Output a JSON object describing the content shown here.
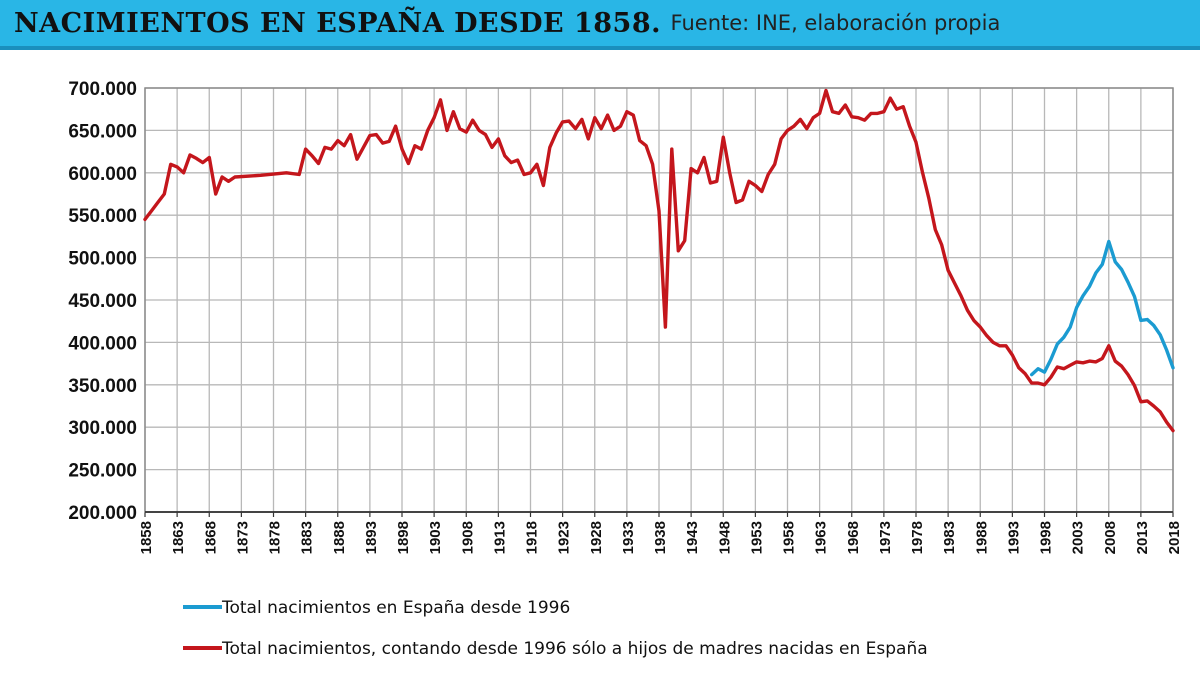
{
  "header": {
    "title": "NACIMIENTOS EN ESPAÑA DESDE 1858",
    "separator": ".",
    "source": "Fuente: INE, elaboración propia"
  },
  "colors": {
    "header_bg": "#29b6e6",
    "series_blue": "#1b9bd1",
    "series_red": "#c4161c"
  },
  "chart_data": {
    "type": "line",
    "title": "NACIMIENTOS EN ESPAÑA DESDE 1858",
    "xlabel": "",
    "ylabel": "",
    "xlim": [
      1858,
      2018
    ],
    "ylim": [
      200000,
      700000
    ],
    "grid": true,
    "legend_position": "bottom",
    "y_ticks": [
      {
        "value": 200000,
        "label": "200.000"
      },
      {
        "value": 250000,
        "label": "250.000"
      },
      {
        "value": 300000,
        "label": "300.000"
      },
      {
        "value": 350000,
        "label": "350.000"
      },
      {
        "value": 400000,
        "label": "400.000"
      },
      {
        "value": 450000,
        "label": "450.000"
      },
      {
        "value": 500000,
        "label": "500.000"
      },
      {
        "value": 550000,
        "label": "550.000"
      },
      {
        "value": 600000,
        "label": "600.000"
      },
      {
        "value": 650000,
        "label": "650.000"
      },
      {
        "value": 700000,
        "label": "700.000"
      }
    ],
    "x_ticks": [
      "1858",
      "1863",
      "1868",
      "1873",
      "1878",
      "1883",
      "1888",
      "1893",
      "1898",
      "1903",
      "1908",
      "1913",
      "1918",
      "1923",
      "1928",
      "1933",
      "1938",
      "1943",
      "1948",
      "1953",
      "1958",
      "1963",
      "1968",
      "1973",
      "1978",
      "1983",
      "1988",
      "1993",
      "1998",
      "2003",
      "2008",
      "2013",
      "2018"
    ],
    "series": [
      {
        "name": "Total nacimientos en España desde 1996",
        "color": "#1b9bd1",
        "points": [
          [
            1996,
            362000
          ],
          [
            1997,
            369000
          ],
          [
            1998,
            365000
          ],
          [
            1999,
            380000
          ],
          [
            2000,
            398000
          ],
          [
            2001,
            406000
          ],
          [
            2002,
            418000
          ],
          [
            2003,
            441000
          ],
          [
            2004,
            455000
          ],
          [
            2005,
            466000
          ],
          [
            2006,
            482000
          ],
          [
            2007,
            492000
          ],
          [
            2008,
            519000
          ],
          [
            2009,
            495000
          ],
          [
            2010,
            486000
          ],
          [
            2011,
            471000
          ],
          [
            2012,
            454000
          ],
          [
            2013,
            426000
          ],
          [
            2014,
            427000
          ],
          [
            2015,
            420000
          ],
          [
            2016,
            409000
          ],
          [
            2017,
            391000
          ],
          [
            2018,
            370000
          ]
        ]
      },
      {
        "name": "Total nacimientos, contando desde 1996 sólo a hijos de madres nacidas en España",
        "color": "#c4161c",
        "points": [
          [
            1858,
            545000
          ],
          [
            1859,
            555000
          ],
          [
            1860,
            565000
          ],
          [
            1861,
            575000
          ],
          [
            1862,
            610000
          ],
          [
            1863,
            607000
          ],
          [
            1864,
            600000
          ],
          [
            1865,
            621000
          ],
          [
            1866,
            617000
          ],
          [
            1867,
            612000
          ],
          [
            1868,
            618000
          ],
          [
            1869,
            575000
          ],
          [
            1870,
            595000
          ],
          [
            1871,
            590000
          ],
          [
            1872,
            595000
          ],
          [
            1876,
            597000
          ],
          [
            1880,
            600000
          ],
          [
            1882,
            598000
          ],
          [
            1883,
            628000
          ],
          [
            1884,
            620000
          ],
          [
            1885,
            611000
          ],
          [
            1886,
            630000
          ],
          [
            1887,
            628000
          ],
          [
            1888,
            638000
          ],
          [
            1889,
            632000
          ],
          [
            1890,
            645000
          ],
          [
            1891,
            616000
          ],
          [
            1892,
            630000
          ],
          [
            1893,
            644000
          ],
          [
            1894,
            645000
          ],
          [
            1895,
            635000
          ],
          [
            1896,
            637000
          ],
          [
            1897,
            655000
          ],
          [
            1898,
            628000
          ],
          [
            1899,
            611000
          ],
          [
            1900,
            632000
          ],
          [
            1901,
            628000
          ],
          [
            1902,
            650000
          ],
          [
            1903,
            665000
          ],
          [
            1904,
            686000
          ],
          [
            1905,
            650000
          ],
          [
            1906,
            672000
          ],
          [
            1907,
            652000
          ],
          [
            1908,
            648000
          ],
          [
            1909,
            662000
          ],
          [
            1910,
            650000
          ],
          [
            1911,
            645000
          ],
          [
            1912,
            630000
          ],
          [
            1913,
            640000
          ],
          [
            1914,
            620000
          ],
          [
            1915,
            612000
          ],
          [
            1916,
            615000
          ],
          [
            1917,
            598000
          ],
          [
            1918,
            600000
          ],
          [
            1919,
            610000
          ],
          [
            1920,
            585000
          ],
          [
            1921,
            630000
          ],
          [
            1922,
            647000
          ],
          [
            1923,
            660000
          ],
          [
            1924,
            661000
          ],
          [
            1925,
            652000
          ],
          [
            1926,
            663000
          ],
          [
            1927,
            640000
          ],
          [
            1928,
            665000
          ],
          [
            1929,
            652000
          ],
          [
            1930,
            668000
          ],
          [
            1931,
            650000
          ],
          [
            1932,
            655000
          ],
          [
            1933,
            672000
          ],
          [
            1934,
            668000
          ],
          [
            1935,
            638000
          ],
          [
            1936,
            632000
          ],
          [
            1937,
            610000
          ],
          [
            1938,
            555000
          ],
          [
            1939,
            418000
          ],
          [
            1940,
            628000
          ],
          [
            1941,
            508000
          ],
          [
            1942,
            520000
          ],
          [
            1943,
            605000
          ],
          [
            1944,
            600000
          ],
          [
            1945,
            618000
          ],
          [
            1946,
            588000
          ],
          [
            1947,
            590000
          ],
          [
            1948,
            642000
          ],
          [
            1949,
            600000
          ],
          [
            1950,
            565000
          ],
          [
            1951,
            568000
          ],
          [
            1952,
            590000
          ],
          [
            1953,
            585000
          ],
          [
            1954,
            578000
          ],
          [
            1955,
            598000
          ],
          [
            1956,
            610000
          ],
          [
            1957,
            640000
          ],
          [
            1958,
            650000
          ],
          [
            1959,
            655000
          ],
          [
            1960,
            663000
          ],
          [
            1961,
            652000
          ],
          [
            1962,
            665000
          ],
          [
            1963,
            670000
          ],
          [
            1964,
            697000
          ],
          [
            1965,
            672000
          ],
          [
            1966,
            670000
          ],
          [
            1967,
            680000
          ],
          [
            1968,
            666000
          ],
          [
            1969,
            665000
          ],
          [
            1970,
            662000
          ],
          [
            1971,
            670000
          ],
          [
            1972,
            670000
          ],
          [
            1973,
            672000
          ],
          [
            1974,
            688000
          ],
          [
            1975,
            675000
          ],
          [
            1976,
            678000
          ],
          [
            1977,
            655000
          ],
          [
            1978,
            636000
          ],
          [
            1979,
            601000
          ],
          [
            1980,
            570000
          ],
          [
            1981,
            533000
          ],
          [
            1982,
            515000
          ],
          [
            1983,
            485000
          ],
          [
            1984,
            470000
          ],
          [
            1985,
            455000
          ],
          [
            1986,
            438000
          ],
          [
            1987,
            426000
          ],
          [
            1988,
            418000
          ],
          [
            1989,
            408000
          ],
          [
            1990,
            400000
          ],
          [
            1991,
            396000
          ],
          [
            1992,
            396000
          ],
          [
            1993,
            385000
          ],
          [
            1994,
            370000
          ],
          [
            1995,
            363000
          ],
          [
            1996,
            352000
          ],
          [
            1997,
            352000
          ],
          [
            1998,
            350000
          ],
          [
            1999,
            359000
          ],
          [
            2000,
            371000
          ],
          [
            2001,
            369000
          ],
          [
            2002,
            373000
          ],
          [
            2003,
            377000
          ],
          [
            2004,
            376000
          ],
          [
            2005,
            378000
          ],
          [
            2006,
            377000
          ],
          [
            2007,
            381000
          ],
          [
            2008,
            396000
          ],
          [
            2009,
            378000
          ],
          [
            2010,
            372000
          ],
          [
            2011,
            362000
          ],
          [
            2012,
            349000
          ],
          [
            2013,
            330000
          ],
          [
            2014,
            331000
          ],
          [
            2015,
            325000
          ],
          [
            2016,
            318000
          ],
          [
            2017,
            306000
          ],
          [
            2018,
            296000
          ]
        ]
      }
    ]
  }
}
